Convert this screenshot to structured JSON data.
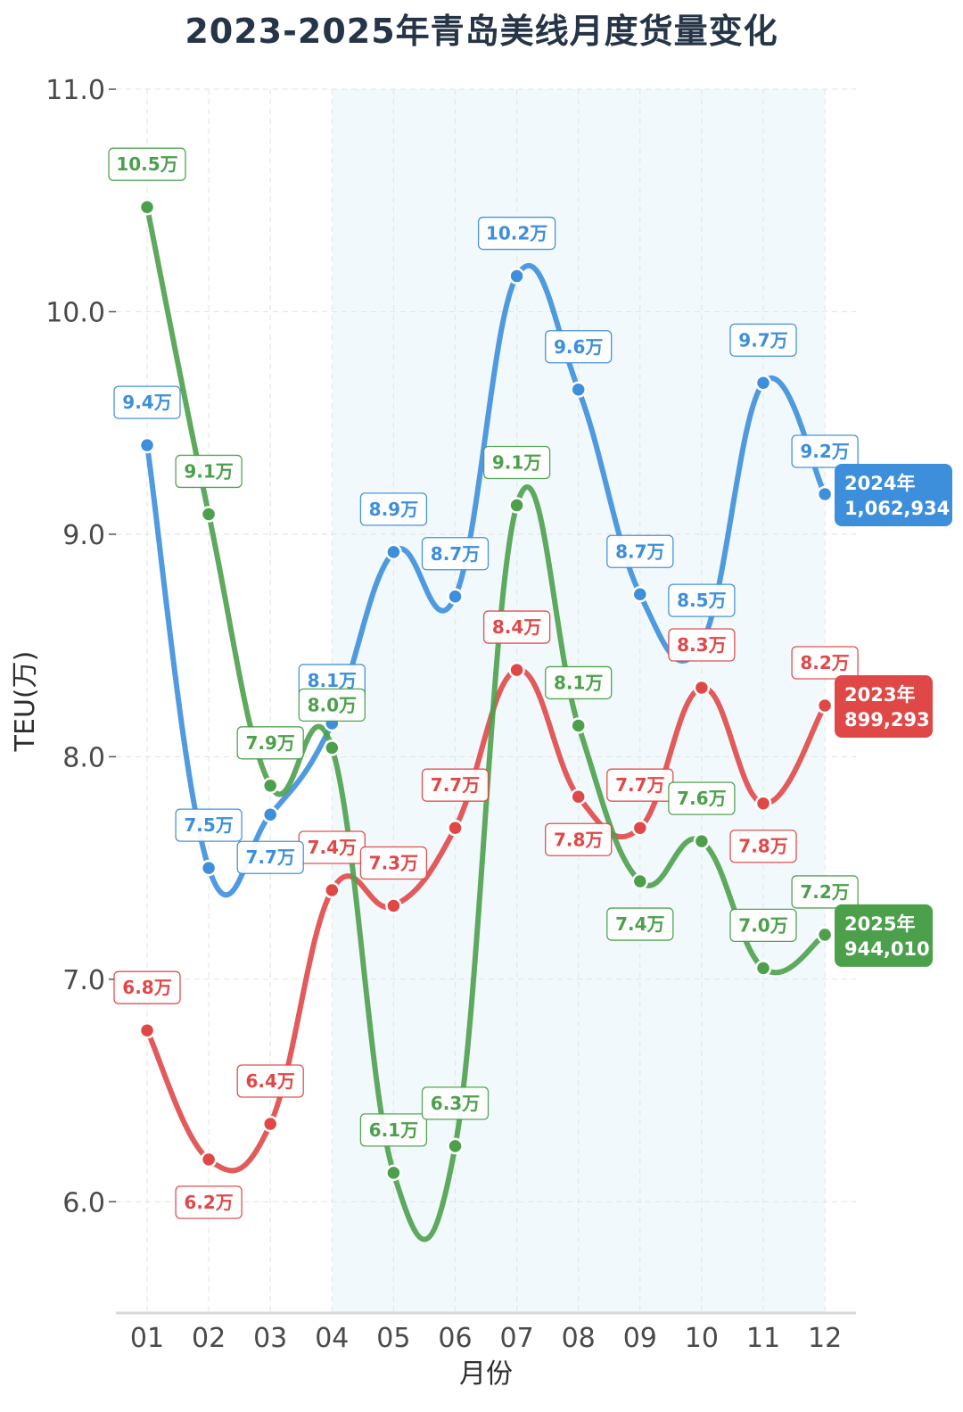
{
  "title": "2023-2025年青岛美线月度货量变化",
  "chart_data": {
    "type": "line",
    "title": "2023-2025年青岛美线月度货量变化",
    "xlabel": "月份",
    "ylabel": "TEU(万)",
    "categories": [
      "01",
      "02",
      "03",
      "04",
      "05",
      "06",
      "07",
      "08",
      "09",
      "10",
      "11",
      "12"
    ],
    "ylim": [
      5.5,
      11.0
    ],
    "yticks": [
      "6.0",
      "7.0",
      "8.0",
      "9.0",
      "10.0",
      "11.0"
    ],
    "grid": true,
    "highlight_range": [
      "04",
      "12"
    ],
    "unit_suffix": "万",
    "series": [
      {
        "name": "2023年",
        "total": "899,293",
        "color": "#e04848",
        "values": [
          6.77,
          6.19,
          6.35,
          7.4,
          7.33,
          7.68,
          8.39,
          7.82,
          7.68,
          8.31,
          7.79,
          8.23
        ],
        "labels": [
          "6.8万",
          "6.2万",
          "6.4万",
          "7.4万",
          "7.3万",
          "7.7万",
          "8.4万",
          "7.8万",
          "7.7万",
          "8.3万",
          "7.8万",
          "8.2万"
        ],
        "end_label": [
          "2023年",
          "899,293"
        ]
      },
      {
        "name": "2024年",
        "total": "1,062,934",
        "color": "#3d8fdc",
        "values": [
          9.4,
          7.5,
          7.74,
          8.15,
          8.92,
          8.72,
          10.16,
          9.65,
          8.73,
          8.51,
          9.68,
          9.18
        ],
        "labels": [
          "9.4万",
          "7.5万",
          "7.7万",
          "8.1万",
          "8.9万",
          "8.7万",
          "10.2万",
          "9.6万",
          "8.7万",
          "8.5万",
          "9.7万",
          "9.2万"
        ],
        "end_label": [
          "2024年",
          "1,062,934"
        ]
      },
      {
        "name": "2025年",
        "total": "944,010",
        "color": "#4ca04c",
        "values": [
          10.47,
          9.09,
          7.87,
          8.04,
          6.13,
          6.25,
          9.13,
          8.14,
          7.44,
          7.62,
          7.05,
          7.2
        ],
        "labels": [
          "10.5万",
          "9.1万",
          "7.9万",
          "8.0万",
          "6.1万",
          "6.3万",
          "9.1万",
          "8.1万",
          "7.4万",
          "7.6万",
          "7.0万",
          "7.2万"
        ],
        "end_label": [
          "2025年",
          "944,010"
        ]
      }
    ]
  }
}
